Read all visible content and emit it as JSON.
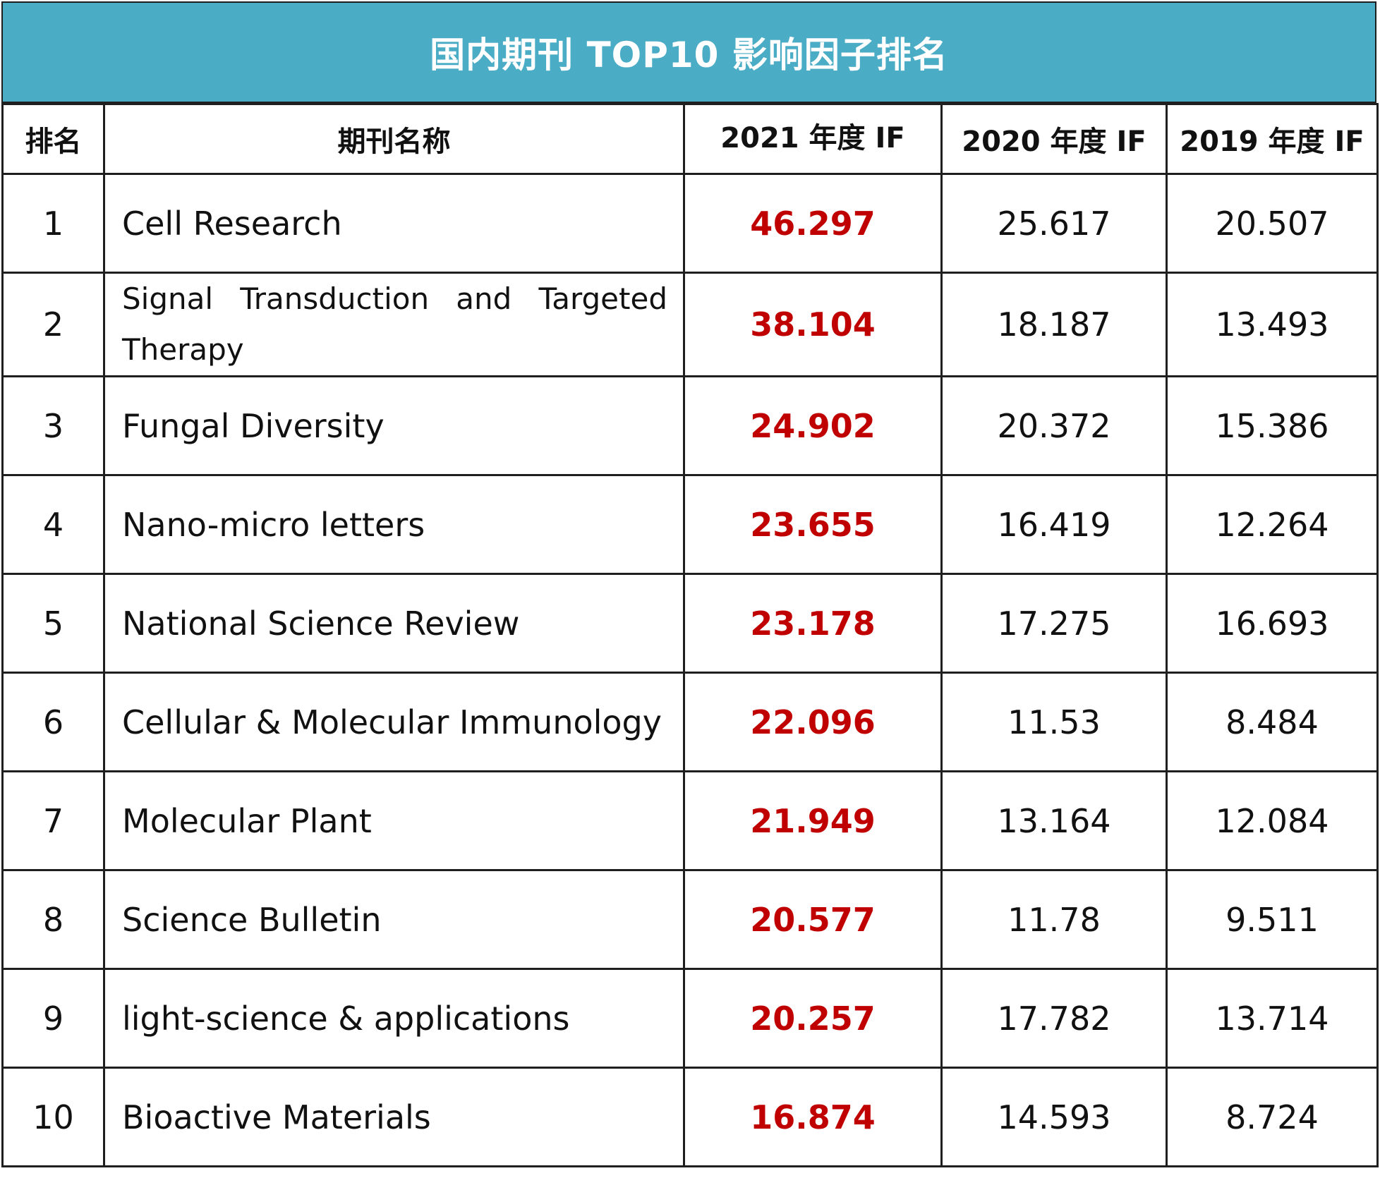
{
  "title": "国内期刊 TOP10 影响因子排名",
  "header": {
    "rank": "排名",
    "name": "期刊名称",
    "if2021": "2021 年度 IF",
    "if2020": "2020 年度 IF",
    "if2019": "2019 年度 IF"
  },
  "rows": [
    {
      "rank": "1",
      "name": "Cell Research",
      "if2021": "46.297",
      "if2020": "25.617",
      "if2019": "20.507"
    },
    {
      "rank": "2",
      "name": "Signal Transduction and Targeted Therapy",
      "if2021": "38.104",
      "if2020": "18.187",
      "if2019": "13.493"
    },
    {
      "rank": "3",
      "name": "Fungal Diversity",
      "if2021": "24.902",
      "if2020": "20.372",
      "if2019": "15.386"
    },
    {
      "rank": "4",
      "name": "Nano-micro letters",
      "if2021": "23.655",
      "if2020": "16.419",
      "if2019": "12.264"
    },
    {
      "rank": "5",
      "name": "National Science Review",
      "if2021": "23.178",
      "if2020": "17.275",
      "if2019": "16.693"
    },
    {
      "rank": "6",
      "name": "Cellular & Molecular Immunology",
      "if2021": "22.096",
      "if2020": "11.53",
      "if2019": "8.484"
    },
    {
      "rank": "7",
      "name": "Molecular Plant",
      "if2021": "21.949",
      "if2020": "13.164",
      "if2019": "12.084"
    },
    {
      "rank": "8",
      "name": "Science Bulletin",
      "if2021": "20.577",
      "if2020": "11.78",
      "if2019": "9.511"
    },
    {
      "rank": "9",
      "name": "light-science & applications",
      "if2021": "20.257",
      "if2020": "17.782",
      "if2019": "13.714"
    },
    {
      "rank": "10",
      "name": "Bioactive Materials",
      "if2021": "16.874",
      "if2020": "14.593",
      "if2019": "8.724"
    }
  ],
  "colors": {
    "title_background": "#4BACC6",
    "title_text": "#FFFFFF",
    "highlight_value": "#C00000",
    "border": "#1F1F1F"
  }
}
